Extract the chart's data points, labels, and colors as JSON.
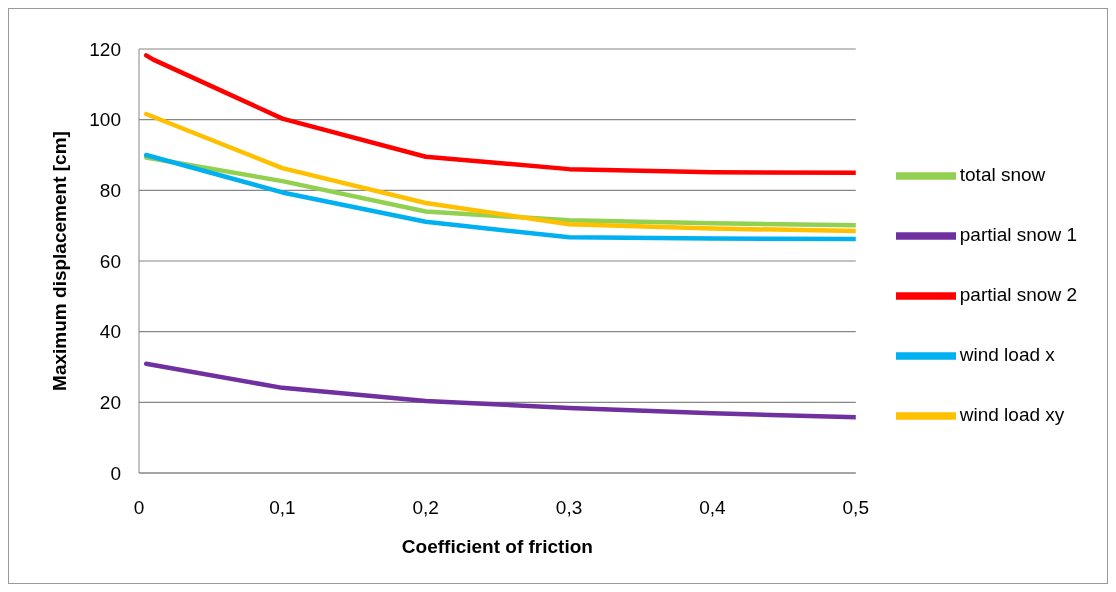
{
  "chart_data": {
    "type": "line",
    "xlabel": "Coefficient of friction",
    "ylabel": "Maximum displacement [cm]",
    "xlim": [
      0,
      0.5
    ],
    "xticks": [
      0,
      {
        "value": 0.1,
        "label": "0,1"
      },
      {
        "value": 0.2,
        "label": "0,2"
      },
      {
        "value": 0.3,
        "label": "0,3"
      },
      {
        "value": 0.4,
        "label": "0,4"
      },
      {
        "value": 0.5,
        "label": "0,5"
      }
    ],
    "ylim": [
      0,
      120
    ],
    "yticks": [
      0,
      20,
      40,
      60,
      80,
      100,
      120
    ],
    "grid": "y",
    "legend": "right",
    "marker": "none",
    "line_style": "solid",
    "series": [
      {
        "name": "total snow",
        "color": "#92d050",
        "x": [
          0.005,
          0.1,
          0.2,
          0.3,
          0.4,
          0.5
        ],
        "values": [
          89.3,
          82.6,
          74,
          71.5,
          70.7,
          70.1
        ]
      },
      {
        "name": "partial snow 1",
        "color": "#7030a0",
        "x": [
          0.005,
          0.1,
          0.2,
          0.3,
          0.4,
          0.5
        ],
        "values": [
          30.9,
          24.1,
          20.4,
          18.4,
          16.9,
          15.8
        ]
      },
      {
        "name": "partial snow 2",
        "color": "#ff0000",
        "x": [
          0.005,
          0.01,
          0.1,
          0.2,
          0.3,
          0.4,
          0.5
        ],
        "values": [
          118.2,
          117,
          100.3,
          89.5,
          86,
          85.1,
          85
        ]
      },
      {
        "name": "wind load x",
        "color": "#00b0f0",
        "x": [
          0.005,
          0.1,
          0.2,
          0.3,
          0.4,
          0.5
        ],
        "values": [
          90,
          79.4,
          71.1,
          66.7,
          66.4,
          66.2
        ]
      },
      {
        "name": "wind load xy",
        "color": "#ffc000",
        "x": [
          0.005,
          0.1,
          0.2,
          0.3,
          0.4,
          0.5
        ],
        "values": [
          101.6,
          86.3,
          76.4,
          70.4,
          69.2,
          68.5
        ]
      }
    ]
  }
}
